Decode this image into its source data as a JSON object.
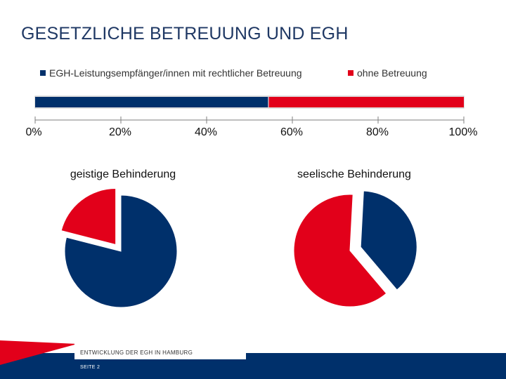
{
  "page": {
    "title": "GESETZLICHE BETREUUNG UND EGH",
    "footer_subtitle": "ENTWICKLUNG DER EGH IN HAMBURG",
    "footer_page": "SEITE 2"
  },
  "colors": {
    "navy": "#00306b",
    "red": "#e2001a",
    "axis": "#7f7f7f",
    "title": "#1f3864"
  },
  "chart_data": [
    {
      "type": "bar",
      "orientation": "horizontal",
      "stacked": true,
      "categories": [
        ""
      ],
      "series": [
        {
          "name": "EGH-Leistungsempfänger/innen mit rechtlicher Betreuung",
          "values": [
            54.5
          ]
        },
        {
          "name": "ohne Betreuung",
          "values": [
            45.5
          ]
        }
      ],
      "xlim": [
        0,
        100
      ],
      "tick_values": [
        0,
        20,
        40,
        60,
        80,
        100
      ],
      "tick_labels": [
        "0%",
        "20%",
        "40%",
        "60%",
        "80%",
        "100%"
      ],
      "legend": "top",
      "grid": false
    },
    {
      "type": "pie",
      "title": "geistige Behinderung",
      "slices": [
        {
          "name": "EGH-Leistungsempfänger/innen mit rechtlicher Betreuung",
          "value": 79
        },
        {
          "name": "ohne Betreuung",
          "value": 21
        }
      ]
    },
    {
      "type": "pie",
      "title": "seelische Behinderung",
      "slices": [
        {
          "name": "EGH-Leistungsempfänger/innen mit rechtlicher Betreuung",
          "value": 38
        },
        {
          "name": "ohne Betreuung",
          "value": 62
        }
      ]
    }
  ]
}
